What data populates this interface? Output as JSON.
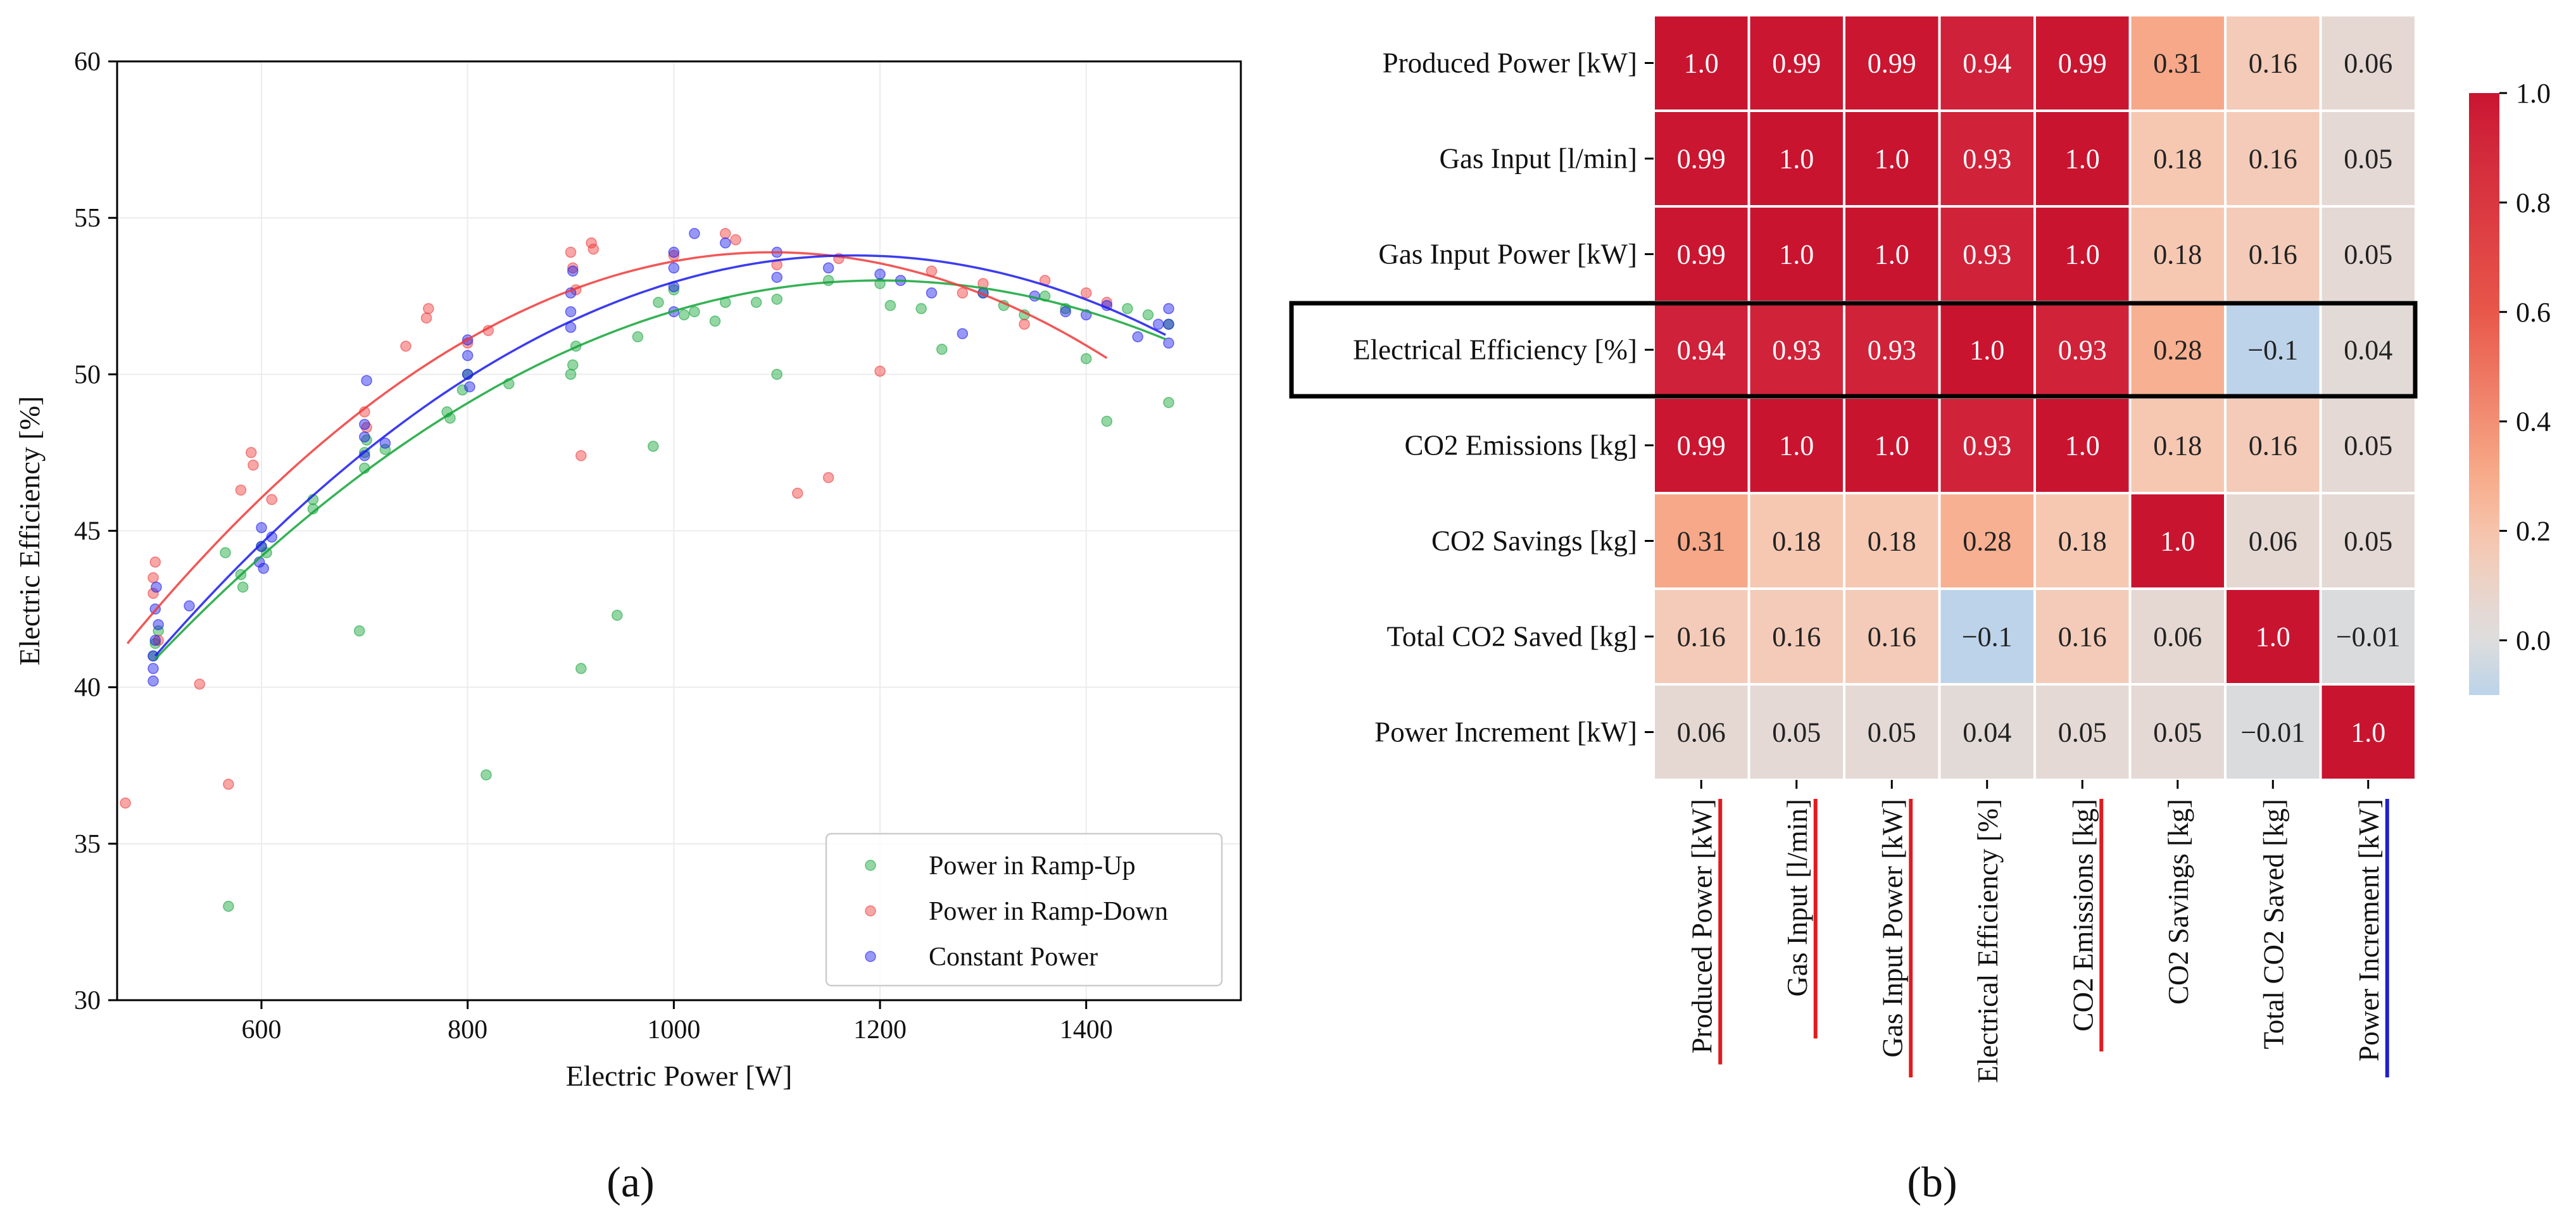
{
  "panel_labels": {
    "a": "(a)",
    "b": "(b)"
  },
  "chart_data": [
    {
      "type": "scatter",
      "xlabel": "Electric Power [W]",
      "ylabel": "Electric Efficiency [%]",
      "xlim": [
        460,
        1550
      ],
      "ylim": [
        30,
        60
      ],
      "xticks": [
        600,
        800,
        1000,
        1200,
        1400
      ],
      "yticks": [
        30,
        35,
        40,
        45,
        50,
        55,
        60
      ],
      "grid": true,
      "legend_position": "lower-right",
      "series": [
        {
          "name": "Power in Ramp-Up",
          "color": "#13a538",
          "points": [
            [
              495,
              41.0
            ],
            [
              497,
              41.4
            ],
            [
              500,
              41.8
            ],
            [
              565,
              44.3
            ],
            [
              568,
              33.0
            ],
            [
              580,
              43.6
            ],
            [
              582,
              43.2
            ],
            [
              600,
              44.5
            ],
            [
              605,
              44.3
            ],
            [
              650,
              45.7
            ],
            [
              650,
              46.0
            ],
            [
              695,
              41.8
            ],
            [
              700,
              47.0
            ],
            [
              700,
              47.5
            ],
            [
              702,
              47.9
            ],
            [
              720,
              47.6
            ],
            [
              780,
              48.8
            ],
            [
              783,
              48.6
            ],
            [
              795,
              49.5
            ],
            [
              800,
              50.0
            ],
            [
              818,
              37.2
            ],
            [
              840,
              49.7
            ],
            [
              900,
              50.0
            ],
            [
              902,
              50.3
            ],
            [
              905,
              50.9
            ],
            [
              910,
              40.6
            ],
            [
              945,
              42.3
            ],
            [
              965,
              51.2
            ],
            [
              980,
              47.7
            ],
            [
              985,
              52.3
            ],
            [
              1000,
              52.7
            ],
            [
              1010,
              51.9
            ],
            [
              1020,
              52.0
            ],
            [
              1040,
              51.7
            ],
            [
              1050,
              52.3
            ],
            [
              1080,
              52.3
            ],
            [
              1100,
              50.0
            ],
            [
              1100,
              52.4
            ],
            [
              1150,
              53.0
            ],
            [
              1200,
              52.9
            ],
            [
              1210,
              52.2
            ],
            [
              1240,
              52.1
            ],
            [
              1260,
              50.8
            ],
            [
              1300,
              52.6
            ],
            [
              1320,
              52.2
            ],
            [
              1340,
              51.9
            ],
            [
              1360,
              52.5
            ],
            [
              1380,
              52.1
            ],
            [
              1400,
              50.5
            ],
            [
              1420,
              48.5
            ],
            [
              1440,
              52.1
            ],
            [
              1460,
              51.9
            ],
            [
              1480,
              49.1
            ],
            [
              1480,
              51.6
            ]
          ],
          "fit": {
            "x_range": [
              497,
              1480
            ],
            "peak_x": 1200,
            "peak_y": 53.0
          }
        },
        {
          "name": "Power in Ramp-Down",
          "color": "#f03a3a",
          "points": [
            [
              468,
              36.3
            ],
            [
              495,
              43.5
            ],
            [
              495,
              43.0
            ],
            [
              497,
              44.0
            ],
            [
              500,
              41.5
            ],
            [
              540,
              40.1
            ],
            [
              568,
              36.9
            ],
            [
              580,
              46.3
            ],
            [
              590,
              47.5
            ],
            [
              592,
              47.1
            ],
            [
              610,
              46.0
            ],
            [
              700,
              48.8
            ],
            [
              702,
              48.3
            ],
            [
              740,
              50.9
            ],
            [
              760,
              51.8
            ],
            [
              762,
              52.1
            ],
            [
              800,
              51.0
            ],
            [
              820,
              51.4
            ],
            [
              900,
              53.9
            ],
            [
              902,
              53.4
            ],
            [
              905,
              52.7
            ],
            [
              910,
              47.4
            ],
            [
              920,
              54.2
            ],
            [
              922,
              54.0
            ],
            [
              1000,
              53.8
            ],
            [
              1050,
              54.5
            ],
            [
              1060,
              54.3
            ],
            [
              1100,
              53.5
            ],
            [
              1120,
              46.2
            ],
            [
              1150,
              46.7
            ],
            [
              1200,
              50.1
            ],
            [
              1160,
              53.7
            ],
            [
              1250,
              53.3
            ],
            [
              1280,
              52.6
            ],
            [
              1300,
              52.9
            ],
            [
              1340,
              51.6
            ],
            [
              1360,
              53.0
            ],
            [
              1400,
              52.6
            ],
            [
              1420,
              52.3
            ]
          ],
          "fit": {
            "x_range": [
              470,
              1420
            ],
            "peak_x": 1095,
            "peak_y": 53.9
          }
        },
        {
          "name": "Constant Power",
          "color": "#1a1aee",
          "points": [
            [
              495,
              40.2
            ],
            [
              495,
              40.6
            ],
            [
              495,
              41.0
            ],
            [
              497,
              41.5
            ],
            [
              497,
              42.5
            ],
            [
              498,
              43.2
            ],
            [
              500,
              42.0
            ],
            [
              530,
              42.6
            ],
            [
              598,
              44.0
            ],
            [
              600,
              44.5
            ],
            [
              600,
              45.1
            ],
            [
              602,
              43.8
            ],
            [
              610,
              44.8
            ],
            [
              700,
              47.4
            ],
            [
              700,
              48.0
            ],
            [
              700,
              48.4
            ],
            [
              702,
              49.8
            ],
            [
              720,
              47.8
            ],
            [
              800,
              50.0
            ],
            [
              800,
              50.6
            ],
            [
              800,
              51.1
            ],
            [
              802,
              49.6
            ],
            [
              900,
              51.5
            ],
            [
              900,
              52.0
            ],
            [
              900,
              52.6
            ],
            [
              902,
              53.3
            ],
            [
              1000,
              52.0
            ],
            [
              1000,
              52.8
            ],
            [
              1000,
              53.4
            ],
            [
              1000,
              53.9
            ],
            [
              1020,
              54.5
            ],
            [
              1050,
              54.2
            ],
            [
              1100,
              53.9
            ],
            [
              1100,
              53.1
            ],
            [
              1150,
              53.4
            ],
            [
              1200,
              53.2
            ],
            [
              1220,
              53.0
            ],
            [
              1250,
              52.6
            ],
            [
              1280,
              51.3
            ],
            [
              1300,
              52.6
            ],
            [
              1350,
              52.5
            ],
            [
              1380,
              52.0
            ],
            [
              1400,
              51.9
            ],
            [
              1420,
              52.2
            ],
            [
              1450,
              51.2
            ],
            [
              1470,
              51.6
            ],
            [
              1480,
              51.0
            ],
            [
              1480,
              51.6
            ],
            [
              1480,
              52.1
            ]
          ],
          "fit": {
            "x_range": [
              497,
              1480
            ],
            "peak_x": 1175,
            "peak_y": 53.8
          }
        }
      ]
    },
    {
      "type": "heatmap",
      "labels": [
        "Produced Power [kW]",
        "Gas Input [l/min]",
        "Gas Input Power [kW]",
        "Electrical Efficiency [%]",
        "CO2 Emissions [kg]",
        "CO2 Savings [kg]",
        "Total CO2 Saved [kg]",
        "Power Increment [kW]"
      ],
      "cells": [
        [
          "1.0",
          "0.99",
          "0.99",
          "0.94",
          "0.99",
          "0.31",
          "0.16",
          "0.06"
        ],
        [
          "0.99",
          "1.0",
          "1.0",
          "0.93",
          "1.0",
          "0.18",
          "0.16",
          "0.05"
        ],
        [
          "0.99",
          "1.0",
          "1.0",
          "0.93",
          "1.0",
          "0.18",
          "0.16",
          "0.05"
        ],
        [
          "0.94",
          "0.93",
          "0.93",
          "1.0",
          "0.93",
          "0.28",
          "−0.1",
          "0.04"
        ],
        [
          "0.99",
          "1.0",
          "1.0",
          "0.93",
          "1.0",
          "0.18",
          "0.16",
          "0.05"
        ],
        [
          "0.31",
          "0.18",
          "0.18",
          "0.28",
          "0.18",
          "1.0",
          "0.06",
          "0.05"
        ],
        [
          "0.16",
          "0.16",
          "0.16",
          "−0.1",
          "0.16",
          "0.06",
          "1.0",
          "−0.01"
        ],
        [
          "0.06",
          "0.05",
          "0.05",
          "0.04",
          "0.05",
          "0.05",
          "−0.01",
          "1.0"
        ]
      ],
      "colorbar": {
        "range": [
          -0.1,
          1.0
        ],
        "ticks": [
          0.0,
          0.2,
          0.4,
          0.6,
          0.8,
          1.0
        ],
        "tick_labels": [
          "0.0",
          "0.2",
          "0.4",
          "0.6",
          "0.8",
          "1.0"
        ],
        "colormap": "coolwarm-center-0"
      },
      "highlighted_row": 3,
      "column_underline_colors": [
        "#e31a1c",
        "#e31a1c",
        "#e31a1c",
        null,
        "#e31a1c",
        null,
        null,
        "#2020c8"
      ]
    }
  ]
}
